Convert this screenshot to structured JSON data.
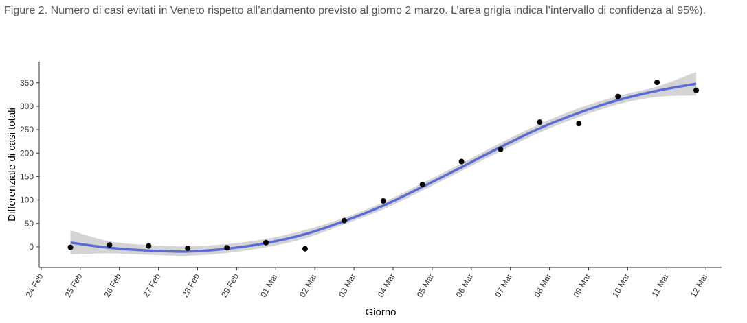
{
  "chart_data": {
    "type": "scatter",
    "title": "Figure 2. Numero di casi evitati in Veneto rispetto all’andamento previsto al giorno 2 marzo. L’area grigia indica l’intervallo di confidenza al 95%).",
    "x_label": "Giorno",
    "y_label": "Differenziale di casi totali",
    "x": [
      0.75,
      1.75,
      2.75,
      3.75,
      4.75,
      5.75,
      6.75,
      7.75,
      8.75,
      9.75,
      10.75,
      11.75,
      12.75,
      13.75,
      14.75,
      15.75,
      16.75
    ],
    "points": {
      "color": "#000000",
      "values": [
        -1,
        4,
        2,
        -3,
        -2,
        9,
        -4,
        56,
        98,
        133,
        182,
        208,
        266,
        263,
        321,
        351,
        334
      ]
    },
    "fit": {
      "color": "#5b6bd6",
      "values": [
        9,
        -2,
        -8,
        -10,
        -4,
        8,
        27,
        55,
        88,
        128,
        170,
        213,
        253,
        286,
        313,
        333,
        348
      ]
    },
    "band": {
      "color": "#d4d4d4",
      "upper": [
        35,
        12,
        4,
        1,
        6,
        17,
        36,
        62,
        95,
        136,
        178,
        222,
        262,
        296,
        322,
        342,
        373
      ],
      "lower": [
        -16,
        -14,
        -17,
        -19,
        -13,
        -1,
        18,
        48,
        80,
        120,
        162,
        204,
        244,
        277,
        304,
        320,
        323
      ]
    },
    "xlim": [
      -0.05,
      17.4
    ],
    "xticks": [
      {
        "value": 0,
        "label": "24 Feb"
      },
      {
        "value": 1,
        "label": "25 Feb"
      },
      {
        "value": 2,
        "label": "26 Feb"
      },
      {
        "value": 3,
        "label": "27 Feb"
      },
      {
        "value": 4,
        "label": "28 Feb"
      },
      {
        "value": 5,
        "label": "29 Feb"
      },
      {
        "value": 6,
        "label": "01 Mar"
      },
      {
        "value": 7,
        "label": "02 Mar"
      },
      {
        "value": 8,
        "label": "03 Mar"
      },
      {
        "value": 9,
        "label": "04 Mar"
      },
      {
        "value": 10,
        "label": "05 Mar"
      },
      {
        "value": 11,
        "label": "06 Mar"
      },
      {
        "value": 12,
        "label": "07 Mar"
      },
      {
        "value": 13,
        "label": "08 Mar"
      },
      {
        "value": 14,
        "label": "09 Mar"
      },
      {
        "value": 15,
        "label": "10 Mar"
      },
      {
        "value": 16,
        "label": "11 Mar"
      },
      {
        "value": 17,
        "label": "12 Mar"
      }
    ],
    "ylim": [
      -44,
      395
    ],
    "yticks": [
      0,
      50,
      100,
      150,
      200,
      250,
      300,
      350
    ],
    "grid": false
  }
}
